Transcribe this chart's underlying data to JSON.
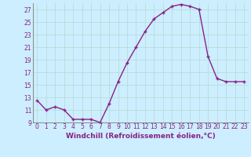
{
  "x": [
    0,
    1,
    2,
    3,
    4,
    5,
    6,
    7,
    8,
    9,
    10,
    11,
    12,
    13,
    14,
    15,
    16,
    17,
    18,
    19,
    20,
    21,
    22,
    23
  ],
  "y": [
    12.5,
    11.0,
    11.5,
    11.0,
    9.5,
    9.5,
    9.5,
    9.0,
    12.0,
    15.5,
    18.5,
    21.0,
    23.5,
    25.5,
    26.5,
    27.5,
    27.8,
    27.5,
    27.0,
    19.5,
    16.0,
    15.5,
    15.5,
    15.5
  ],
  "line_color": "#882288",
  "marker": "P",
  "marker_size": 3,
  "background_color": "#cceeff",
  "grid_color": "#aaddcc",
  "xlabel": "Windchill (Refroidissement éolien,°C)",
  "xlabel_color": "#882288",
  "ylim": [
    9,
    28
  ],
  "xlim": [
    -0.5,
    23.5
  ],
  "yticks": [
    9,
    11,
    13,
    15,
    17,
    19,
    21,
    23,
    25,
    27
  ],
  "xticks": [
    0,
    1,
    2,
    3,
    4,
    5,
    6,
    7,
    8,
    9,
    10,
    11,
    12,
    13,
    14,
    15,
    16,
    17,
    18,
    19,
    20,
    21,
    22,
    23
  ],
  "tick_label_color": "#882288",
  "tick_label_fontsize": 5.5,
  "xlabel_fontsize": 6.5,
  "line_width": 1.0
}
